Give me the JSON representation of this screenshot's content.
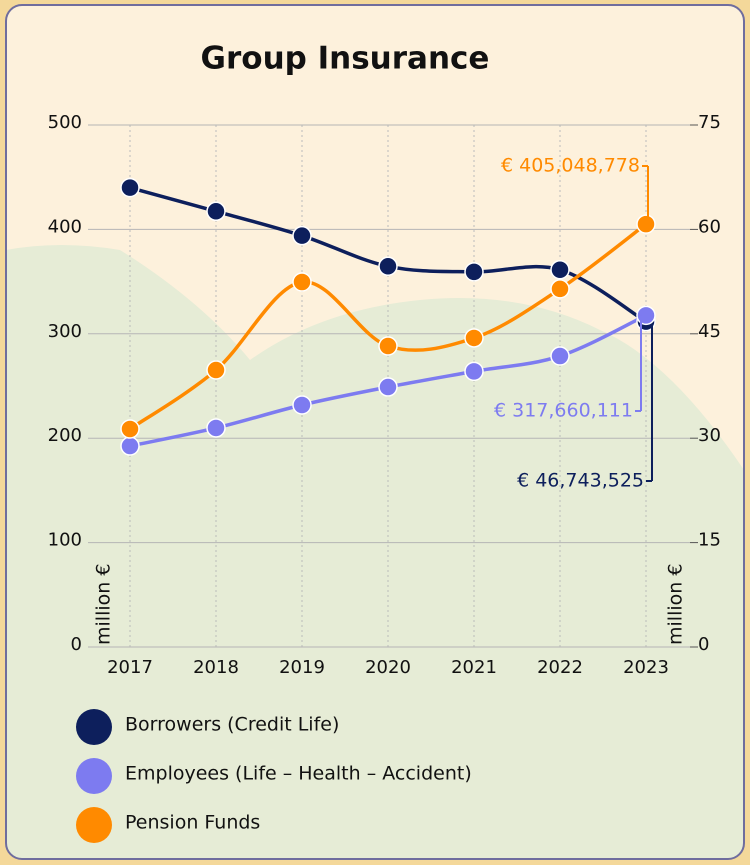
{
  "chart_data": {
    "type": "line",
    "title": "Group Insurance",
    "ylabel": "million €",
    "y2label": "million €",
    "categories": [
      "2017",
      "2018",
      "2019",
      "2020",
      "2021",
      "2022",
      "2023"
    ],
    "ylim": [
      0,
      500
    ],
    "yticks": [
      0,
      100,
      200,
      300,
      400,
      500
    ],
    "y2lim": [
      0,
      75
    ],
    "y2ticks": [
      0,
      15,
      30,
      45,
      60,
      75
    ],
    "grid": true,
    "series": [
      {
        "name": "Borrowers (Credit Life)",
        "color": "#0d1f5c",
        "axis": "y2",
        "values": [
          66.0,
          62.6,
          59.1,
          54.7,
          53.9,
          54.2,
          46.743525
        ],
        "value_labels": [
          null,
          null,
          null,
          null,
          null,
          null,
          "€ 46,743,525"
        ]
      },
      {
        "name": "Employees (Life – Health – Accident)",
        "color": "#7d7bf0",
        "values": [
          192.5,
          209.8,
          231.8,
          249.0,
          264.0,
          278.7,
          317.660111
        ],
        "value_labels": [
          null,
          null,
          null,
          null,
          null,
          null,
          "€ 317,660,111"
        ]
      },
      {
        "name": "Pension Funds",
        "color": "#ff8a00",
        "values": [
          208.8,
          265.3,
          349.6,
          288.3,
          296.0,
          343.0,
          405.048778
        ],
        "value_labels": [
          null,
          null,
          null,
          null,
          null,
          null,
          "€ 405,048,778"
        ]
      }
    ]
  }
}
